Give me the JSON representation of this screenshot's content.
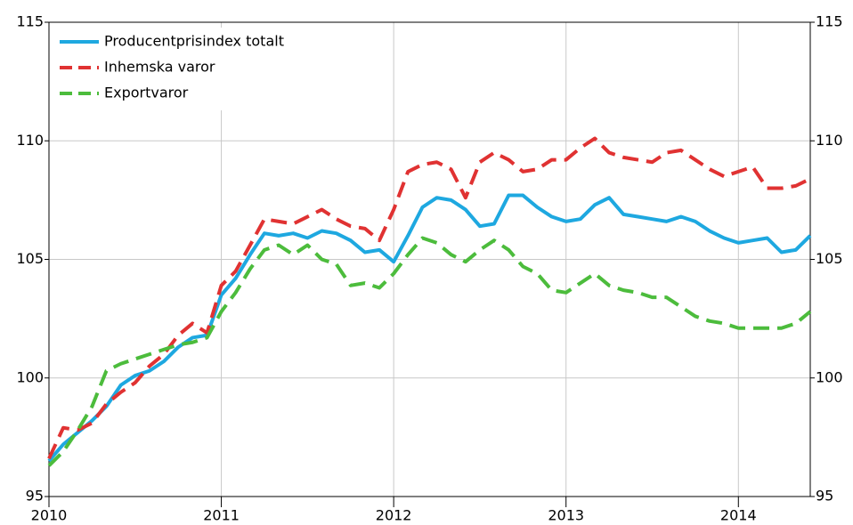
{
  "chart_data": {
    "type": "line",
    "xlim": [
      2010,
      2014.417
    ],
    "xticks": [
      2010,
      2011,
      2012,
      2013,
      2014
    ],
    "ylim": [
      95,
      115
    ],
    "yticks": [
      95,
      100,
      105,
      110,
      115
    ],
    "y2lim": [
      95,
      115
    ],
    "y2ticks": [
      95,
      100,
      105,
      110,
      115
    ],
    "grid": true,
    "legend": "top-left",
    "x": [
      2010,
      2010.083,
      2010.167,
      2010.25,
      2010.333,
      2010.417,
      2010.5,
      2010.583,
      2010.667,
      2010.75,
      2010.833,
      2010.917,
      2011,
      2011.083,
      2011.167,
      2011.25,
      2011.333,
      2011.417,
      2011.5,
      2011.583,
      2011.667,
      2011.75,
      2011.833,
      2011.917,
      2012,
      2012.083,
      2012.167,
      2012.25,
      2012.333,
      2012.417,
      2012.5,
      2012.583,
      2012.667,
      2012.75,
      2012.833,
      2012.917,
      2013,
      2013.083,
      2013.167,
      2013.25,
      2013.333,
      2013.417,
      2013.5,
      2013.583,
      2013.667,
      2013.75,
      2013.833,
      2013.917,
      2014,
      2014.083,
      2014.167,
      2014.25,
      2014.333,
      2014.417
    ],
    "series": [
      {
        "name": "Producentprisindex totalt",
        "color": "#1ea8e0",
        "dash": false,
        "values": [
          96.5,
          97.2,
          97.7,
          98.2,
          98.8,
          99.7,
          100.1,
          100.3,
          100.7,
          101.3,
          101.7,
          101.8,
          103.5,
          104.2,
          105.2,
          106.1,
          106.0,
          106.1,
          105.9,
          106.2,
          106.1,
          105.8,
          105.3,
          105.4,
          104.9,
          106.0,
          107.2,
          107.6,
          107.5,
          107.1,
          106.4,
          106.5,
          107.7,
          107.7,
          107.2,
          106.8,
          106.6,
          106.7,
          107.3,
          107.6,
          106.9,
          106.8,
          106.7,
          106.6,
          106.8,
          106.6,
          106.2,
          105.9,
          105.7,
          105.8,
          105.9,
          105.3,
          105.4,
          106.0
        ]
      },
      {
        "name": "Inhemska varor",
        "color": "#e03232",
        "dash": true,
        "values": [
          96.6,
          97.9,
          97.8,
          98.1,
          98.9,
          99.4,
          99.8,
          100.5,
          101.0,
          101.8,
          102.3,
          101.9,
          103.9,
          104.5,
          105.6,
          106.7,
          106.6,
          106.5,
          106.8,
          107.1,
          106.7,
          106.4,
          106.3,
          105.8,
          107.1,
          108.7,
          109.0,
          109.1,
          108.8,
          107.6,
          109.1,
          109.5,
          109.2,
          108.7,
          108.8,
          109.2,
          109.2,
          109.7,
          110.1,
          109.5,
          109.3,
          109.2,
          109.1,
          109.5,
          109.6,
          109.2,
          108.8,
          108.5,
          108.7,
          108.9,
          108.0,
          108.0,
          108.1,
          108.4
        ]
      },
      {
        "name": "Exportvaror",
        "color": "#4cbc3c",
        "dash": true,
        "values": [
          96.3,
          96.9,
          97.8,
          98.8,
          100.3,
          100.6,
          100.8,
          101.0,
          101.2,
          101.4,
          101.5,
          101.7,
          102.8,
          103.6,
          104.6,
          105.4,
          105.6,
          105.2,
          105.6,
          105.0,
          104.8,
          103.9,
          104.0,
          103.8,
          104.4,
          105.2,
          105.9,
          105.7,
          105.2,
          104.9,
          105.4,
          105.8,
          105.4,
          104.7,
          104.4,
          103.7,
          103.6,
          104.0,
          104.4,
          103.9,
          103.7,
          103.6,
          103.4,
          103.4,
          103.0,
          102.6,
          102.4,
          102.3,
          102.1,
          102.1,
          102.1,
          102.1,
          102.3,
          102.8
        ]
      }
    ]
  }
}
